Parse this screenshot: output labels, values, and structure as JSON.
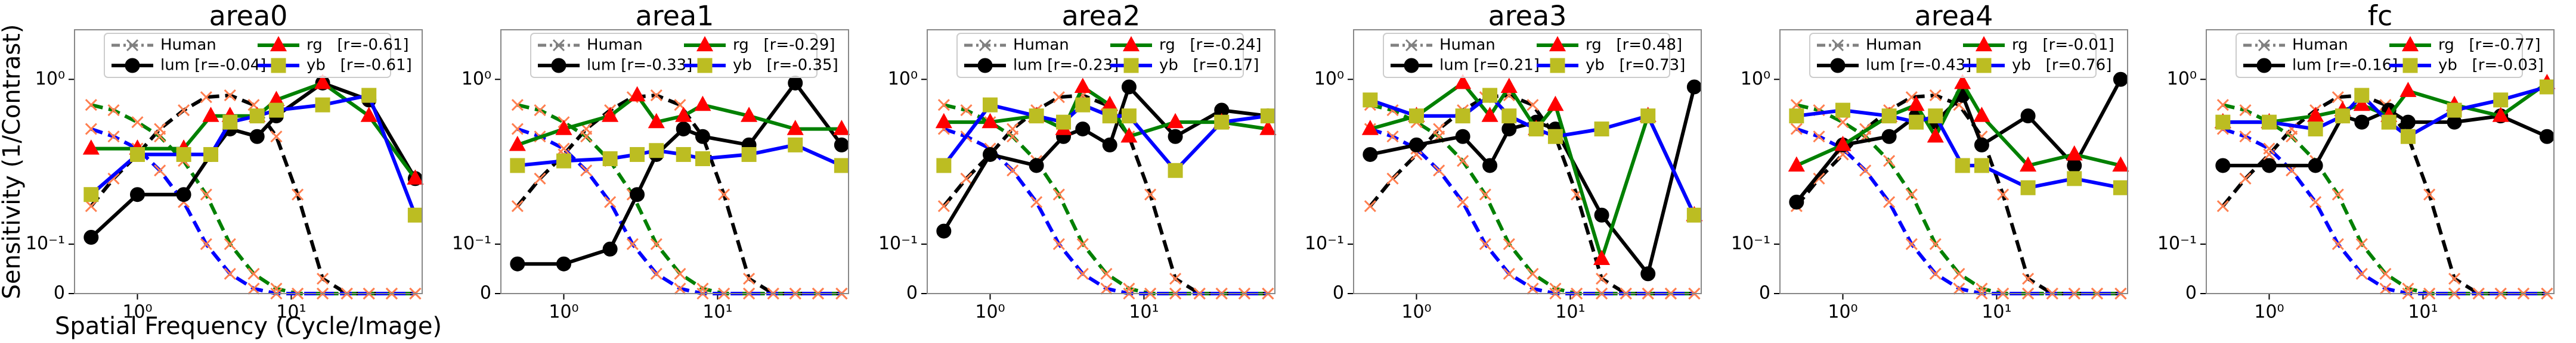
{
  "human": {
    "label": "Human",
    "color": "#808080",
    "marker_color": "#ff7f50",
    "x": [
      0.5,
      0.7,
      1,
      1.4,
      2,
      2.8,
      4,
      5.7,
      8,
      11,
      16,
      23,
      32,
      45,
      64
    ],
    "series": [
      {
        "color": "#000000",
        "values": [
          0.17,
          0.25,
          0.35,
          0.5,
          0.65,
          0.78,
          0.8,
          0.7,
          0.45,
          0.2,
          0.03,
          0,
          0,
          0,
          0
        ]
      },
      {
        "color": "#008000",
        "values": [
          0.7,
          0.65,
          0.55,
          0.45,
          0.32,
          0.2,
          0.1,
          0.04,
          0.01,
          0,
          0,
          0,
          0,
          0,
          0
        ]
      },
      {
        "color": "#0000ff",
        "values": [
          0.5,
          0.45,
          0.38,
          0.28,
          0.18,
          0.1,
          0.04,
          0.01,
          0,
          0,
          0,
          0,
          0,
          0,
          0
        ]
      }
    ]
  },
  "chart_data": [
    {
      "type": "line",
      "title": "area0",
      "xlabel": "Spatial Frequency (Cycle/Image)",
      "ylabel": "Sensitivity (1/Contrast)",
      "xscale": "log",
      "yscale": "symlog",
      "linthresh": 0.1,
      "xlim": [
        0.39,
        71
      ],
      "ylim": [
        0,
        2
      ],
      "xticks": [
        {
          "value": 1,
          "label": "10⁰"
        },
        {
          "value": 10,
          "label": "10¹"
        }
      ],
      "yticks": [
        0,
        {
          "value": 0.1,
          "label": "10⁻¹"
        },
        {
          "value": 1,
          "label": "10⁰"
        }
      ],
      "x": [
        0.5,
        1,
        2,
        3,
        4,
        6,
        8,
        16,
        32,
        64
      ],
      "series": [
        {
          "name": "lum [r=-0.04]",
          "color": "#000000",
          "marker": "circle",
          "marker_color": "#000000",
          "values": [
            0.11,
            0.2,
            0.2,
            0.35,
            0.5,
            0.45,
            0.6,
            0.95,
            0.75,
            0.25
          ]
        },
        {
          "name": "rg   [r=-0.61]",
          "color": "#008000",
          "marker": "triangle",
          "marker_color": "#ff0000",
          "values": [
            0.38,
            0.38,
            0.38,
            0.6,
            0.6,
            0.6,
            0.75,
            0.95,
            0.6,
            0.25
          ]
        },
        {
          "name": "yb   [r=-0.61]",
          "color": "#0000ff",
          "marker": "square",
          "marker_color": "#bcbd22",
          "values": [
            0.2,
            0.35,
            0.35,
            0.35,
            0.55,
            0.6,
            0.65,
            0.7,
            0.8,
            0.15
          ]
        }
      ]
    },
    {
      "type": "line",
      "title": "area1",
      "xscale": "log",
      "yscale": "symlog",
      "linthresh": 0.1,
      "xlim": [
        0.39,
        71
      ],
      "ylim": [
        0,
        2
      ],
      "xticks": [
        {
          "value": 1,
          "label": "10⁰"
        },
        {
          "value": 10,
          "label": "10¹"
        }
      ],
      "yticks": [
        0,
        {
          "value": 0.1,
          "label": "10⁻¹"
        },
        {
          "value": 1,
          "label": "10⁰"
        }
      ],
      "x": [
        0.5,
        1,
        2,
        3,
        4,
        6,
        8,
        16,
        32,
        64
      ],
      "series": [
        {
          "name": "lum [r=-0.33]",
          "color": "#000000",
          "marker": "circle",
          "marker_color": "#000000",
          "values": [
            0.06,
            0.06,
            0.09,
            0.2,
            0.35,
            0.5,
            0.45,
            0.4,
            0.95,
            0.4
          ]
        },
        {
          "name": "rg   [r=-0.29]",
          "color": "#008000",
          "marker": "triangle",
          "marker_color": "#ff0000",
          "values": [
            0.4,
            0.5,
            0.6,
            0.8,
            0.55,
            0.6,
            0.7,
            0.6,
            0.5,
            0.5
          ]
        },
        {
          "name": "yb   [r=-0.35]",
          "color": "#0000ff",
          "marker": "square",
          "marker_color": "#bcbd22",
          "values": [
            0.3,
            0.32,
            0.33,
            0.35,
            0.37,
            0.35,
            0.33,
            0.35,
            0.4,
            0.3
          ]
        }
      ]
    },
    {
      "type": "line",
      "title": "area2",
      "xscale": "log",
      "yscale": "symlog",
      "linthresh": 0.1,
      "xlim": [
        0.39,
        71
      ],
      "ylim": [
        0,
        2
      ],
      "xticks": [
        {
          "value": 1,
          "label": "10⁰"
        },
        {
          "value": 10,
          "label": "10¹"
        }
      ],
      "yticks": [
        0,
        {
          "value": 0.1,
          "label": "10⁻¹"
        },
        {
          "value": 1,
          "label": "10⁰"
        }
      ],
      "x": [
        0.5,
        1,
        2,
        3,
        4,
        6,
        8,
        16,
        32,
        64
      ],
      "series": [
        {
          "name": "lum [r=-0.23]",
          "color": "#000000",
          "marker": "circle",
          "marker_color": "#000000",
          "values": [
            0.12,
            0.35,
            0.3,
            0.45,
            0.5,
            0.4,
            0.9,
            0.45,
            0.65,
            0.6
          ]
        },
        {
          "name": "rg   [r=-0.24]",
          "color": "#008000",
          "marker": "triangle",
          "marker_color": "#ff0000",
          "values": [
            0.55,
            0.55,
            0.6,
            0.5,
            0.9,
            0.7,
            0.45,
            0.55,
            0.55,
            0.5
          ]
        },
        {
          "name": "yb   [r=0.17]",
          "color": "#0000ff",
          "marker": "square",
          "marker_color": "#bcbd22",
          "values": [
            0.3,
            0.7,
            0.6,
            0.55,
            0.7,
            0.6,
            0.6,
            0.28,
            0.55,
            0.6
          ]
        }
      ]
    },
    {
      "type": "line",
      "title": "area3",
      "xscale": "log",
      "yscale": "symlog",
      "linthresh": 0.1,
      "xlim": [
        0.39,
        71
      ],
      "ylim": [
        0,
        2
      ],
      "xticks": [
        {
          "value": 1,
          "label": "10⁰"
        },
        {
          "value": 10,
          "label": "10¹"
        }
      ],
      "yticks": [
        0,
        {
          "value": 0.1,
          "label": "10⁻¹"
        },
        {
          "value": 1,
          "label": "10⁰"
        }
      ],
      "x": [
        0.5,
        1,
        2,
        3,
        4,
        6,
        8,
        16,
        32,
        64
      ],
      "series": [
        {
          "name": "lum [r=0.21]",
          "color": "#000000",
          "marker": "circle",
          "marker_color": "#000000",
          "values": [
            0.35,
            0.4,
            0.45,
            0.3,
            0.5,
            0.55,
            0.5,
            0.15,
            0.04,
            0.9
          ]
        },
        {
          "name": "rg   [r=0.48]",
          "color": "#008000",
          "marker": "triangle",
          "marker_color": "#ff0000",
          "values": [
            0.5,
            0.6,
            0.95,
            0.6,
            0.9,
            0.5,
            0.7,
            0.07,
            0.6,
            0.15
          ]
        },
        {
          "name": "yb   [r=0.73]",
          "color": "#0000ff",
          "marker": "square",
          "marker_color": "#bcbd22",
          "values": [
            0.75,
            0.6,
            0.6,
            0.8,
            0.6,
            0.5,
            0.45,
            0.5,
            0.6,
            0.15
          ]
        }
      ]
    },
    {
      "type": "line",
      "title": "area4",
      "xscale": "log",
      "yscale": "symlog",
      "linthresh": 0.1,
      "xlim": [
        0.39,
        71
      ],
      "ylim": [
        0,
        2
      ],
      "xticks": [
        {
          "value": 1,
          "label": "10⁰"
        },
        {
          "value": 10,
          "label": "10¹"
        }
      ],
      "yticks": [
        0,
        {
          "value": 0.1,
          "label": "10⁻¹"
        },
        {
          "value": 1,
          "label": "10⁰"
        }
      ],
      "x": [
        0.5,
        1,
        2,
        3,
        4,
        6,
        8,
        16,
        32,
        64
      ],
      "series": [
        {
          "name": "lum [r=-0.43]",
          "color": "#000000",
          "marker": "circle",
          "marker_color": "#000000",
          "values": [
            0.18,
            0.4,
            0.45,
            0.6,
            0.55,
            0.8,
            0.4,
            0.6,
            0.3,
            1.0
          ]
        },
        {
          "name": "rg   [r=-0.01]",
          "color": "#008000",
          "marker": "triangle",
          "marker_color": "#ff0000",
          "values": [
            0.3,
            0.4,
            0.6,
            0.7,
            0.45,
            0.95,
            0.6,
            0.3,
            0.35,
            0.3
          ]
        },
        {
          "name": "yb   [r=0.76]",
          "color": "#0000ff",
          "marker": "square",
          "marker_color": "#bcbd22",
          "values": [
            0.6,
            0.65,
            0.6,
            0.55,
            0.6,
            0.3,
            0.3,
            0.22,
            0.25,
            0.22
          ]
        }
      ]
    },
    {
      "type": "line",
      "title": "fc",
      "xscale": "log",
      "yscale": "symlog",
      "linthresh": 0.1,
      "xlim": [
        0.39,
        71
      ],
      "ylim": [
        0,
        2
      ],
      "xticks": [
        {
          "value": 1,
          "label": "10⁰"
        },
        {
          "value": 10,
          "label": "10¹"
        }
      ],
      "yticks": [
        0,
        {
          "value": 0.1,
          "label": "10⁻¹"
        },
        {
          "value": 1,
          "label": "10⁰"
        }
      ],
      "x": [
        0.5,
        1,
        2,
        3,
        4,
        6,
        8,
        16,
        32,
        64
      ],
      "series": [
        {
          "name": "lum [r=-0.16]",
          "color": "#000000",
          "marker": "circle",
          "marker_color": "#000000",
          "values": [
            0.3,
            0.3,
            0.3,
            0.6,
            0.55,
            0.65,
            0.55,
            0.55,
            0.6,
            0.45
          ]
        },
        {
          "name": "rg   [r=-0.77]",
          "color": "#008000",
          "marker": "triangle",
          "marker_color": "#ff0000",
          "values": [
            0.55,
            0.55,
            0.6,
            0.65,
            0.7,
            0.6,
            0.85,
            0.7,
            0.6,
            0.95
          ]
        },
        {
          "name": "yb   [r=-0.03]",
          "color": "#0000ff",
          "marker": "square",
          "marker_color": "#bcbd22",
          "values": [
            0.55,
            0.55,
            0.5,
            0.6,
            0.8,
            0.55,
            0.45,
            0.65,
            0.75,
            0.9
          ]
        }
      ]
    }
  ]
}
